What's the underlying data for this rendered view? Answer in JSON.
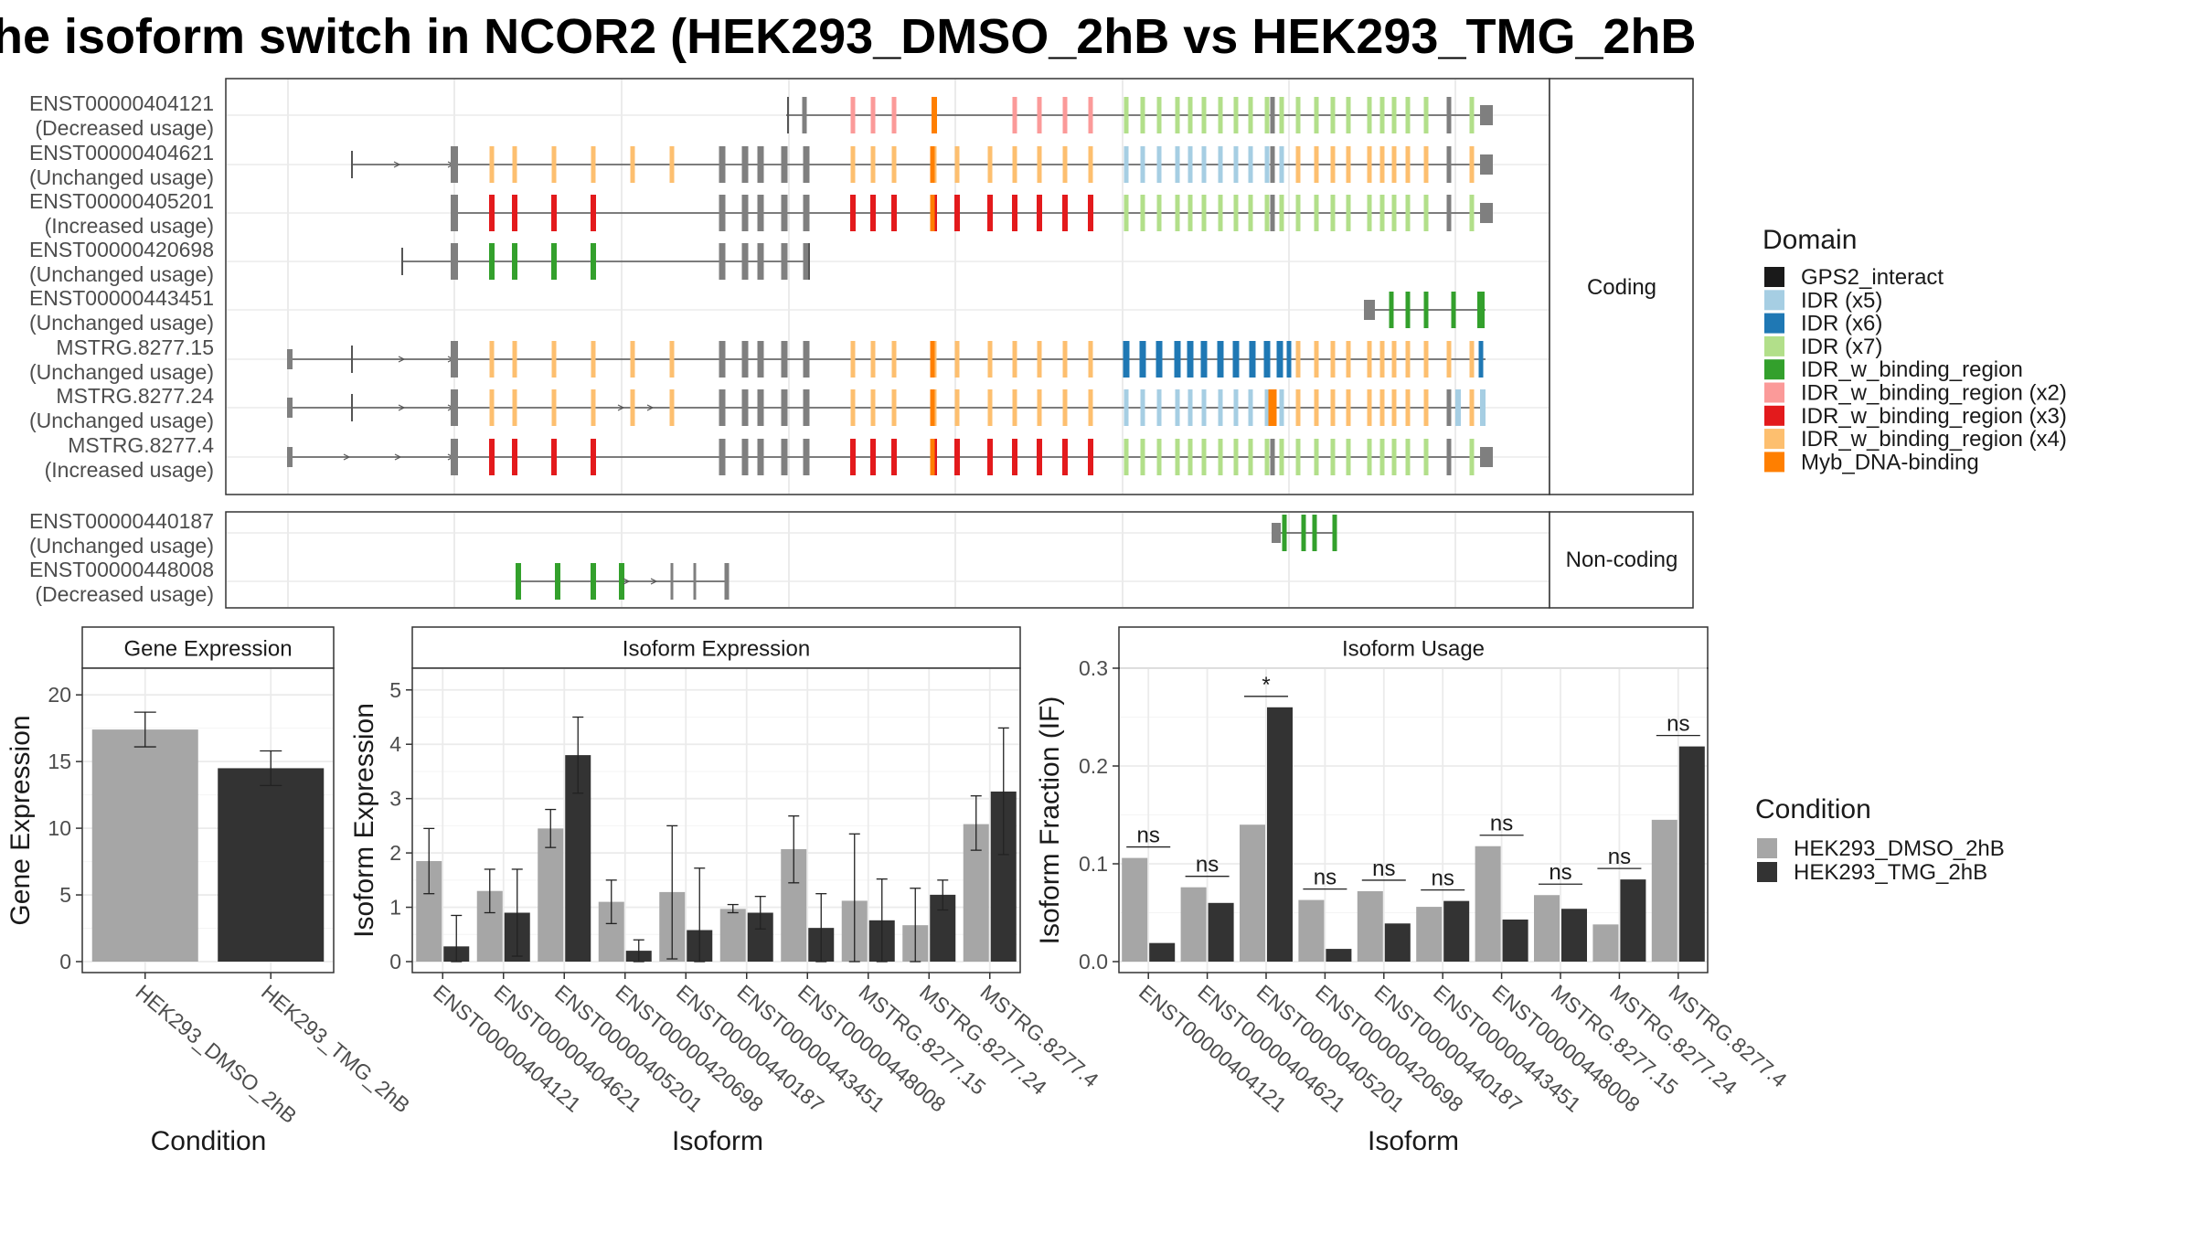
{
  "title": "he isoform switch in NCOR2 (HEK293_DMSO_2hB vs HEK293_TMG_2hB",
  "colors": {
    "dmso": "#a6a6a6",
    "tmg": "#333333",
    "domains": [
      "#1a1a1a",
      "#a6cee3",
      "#1f78b4",
      "#b2df8a",
      "#33a02c",
      "#fb9a99",
      "#e31a1c",
      "#fdbf6f",
      "#ff7f00"
    ],
    "exon_grey": "#7f7f7f",
    "panel_border": "#333333",
    "grid": "#ebebeb",
    "strip_bg": "#ffffff"
  },
  "structure": {
    "facet_coding": "Coding",
    "facet_noncoding": "Non-coding",
    "coding": [
      {
        "id": "ENST00000404121",
        "usage": "(Decreased usage)"
      },
      {
        "id": "ENST00000404621",
        "usage": "(Unchanged usage)"
      },
      {
        "id": "ENST00000405201",
        "usage": "(Increased usage)"
      },
      {
        "id": "ENST00000420698",
        "usage": "(Unchanged usage)"
      },
      {
        "id": "ENST00000443451",
        "usage": "(Unchanged usage)"
      },
      {
        "id": "MSTRG.8277.15",
        "usage": "(Unchanged usage)"
      },
      {
        "id": "MSTRG.8277.24",
        "usage": "(Unchanged usage)"
      },
      {
        "id": "MSTRG.8277.4",
        "usage": "(Increased usage)"
      }
    ],
    "noncoding": [
      {
        "id": "ENST00000440187",
        "usage": "(Unchanged usage)"
      },
      {
        "id": "ENST00000448008",
        "usage": "(Decreased usage)"
      }
    ]
  },
  "domain_legend": {
    "title": "Domain",
    "items": [
      "GPS2_interact",
      "IDR (x5)",
      "IDR (x6)",
      "IDR (x7)",
      "IDR_w_binding_region",
      "IDR_w_binding_region (x2)",
      "IDR_w_binding_region (x3)",
      "IDR_w_binding_region (x4)",
      "Myb_DNA-binding"
    ]
  },
  "condition_legend": {
    "title": "Condition",
    "items": [
      "HEK293_DMSO_2hB",
      "HEK293_TMG_2hB"
    ]
  },
  "chart_data": [
    {
      "type": "bar",
      "title": "Gene Expression",
      "xlabel": "Condition",
      "ylabel": "Gene Expression",
      "categories": [
        "HEK293_DMSO_2hB",
        "HEK293_TMG_2hB"
      ],
      "values": [
        17.4,
        14.5
      ],
      "errors": [
        [
          16.1,
          18.7
        ],
        [
          13.2,
          15.8
        ]
      ],
      "ylim": [
        0,
        22
      ],
      "yticks": [
        "0",
        "5",
        "10",
        "15",
        "20"
      ]
    },
    {
      "type": "bar",
      "title": "Isoform Expression",
      "xlabel": "Isoform",
      "ylabel": "Isoform Expression",
      "categories": [
        "ENST00000404121",
        "ENST00000404621",
        "ENST00000405201",
        "ENST00000420698",
        "ENST00000440187",
        "ENST00000443451",
        "ENST00000448008",
        "MSTRG.8277.15",
        "MSTRG.8277.24",
        "MSTRG.8277.4"
      ],
      "series": [
        {
          "name": "HEK293_DMSO_2hB",
          "values": [
            1.85,
            1.3,
            2.45,
            1.1,
            1.28,
            0.97,
            2.07,
            1.12,
            0.67,
            2.53
          ]
        },
        {
          "name": "HEK293_TMG_2hB",
          "values": [
            0.28,
            0.9,
            3.8,
            0.2,
            0.58,
            0.9,
            0.62,
            0.76,
            1.23,
            3.13
          ]
        }
      ],
      "errors_dmso": [
        [
          1.25,
          2.45
        ],
        [
          0.9,
          1.7
        ],
        [
          2.1,
          2.8
        ],
        [
          0.7,
          1.5
        ],
        [
          0.05,
          2.5
        ],
        [
          0.9,
          1.05
        ],
        [
          1.45,
          2.68
        ],
        [
          0.0,
          2.35
        ],
        [
          0.0,
          1.35
        ],
        [
          2.05,
          3.05
        ]
      ],
      "errors_tmg": [
        [
          0.0,
          0.85
        ],
        [
          0.1,
          1.7
        ],
        [
          3.1,
          4.5
        ],
        [
          0.0,
          0.4
        ],
        [
          0.0,
          1.72
        ],
        [
          0.6,
          1.2
        ],
        [
          0.0,
          1.25
        ],
        [
          0.0,
          1.52
        ],
        [
          0.95,
          1.5
        ],
        [
          1.97,
          4.3
        ]
      ],
      "ylim": [
        0,
        5.4
      ],
      "yticks": [
        "0",
        "1",
        "2",
        "3",
        "4",
        "5"
      ]
    },
    {
      "type": "bar",
      "title": "Isoform Usage",
      "xlabel": "Isoform",
      "ylabel": "Isoform Fraction (IF)",
      "categories": [
        "ENST00000404121",
        "ENST00000404621",
        "ENST00000405201",
        "ENST00000420698",
        "ENST00000440187",
        "ENST00000443451",
        "ENST00000448008",
        "MSTRG.8277.15",
        "MSTRG.8277.24",
        "MSTRG.8277.4"
      ],
      "series": [
        {
          "name": "HEK293_DMSO_2hB",
          "values": [
            0.106,
            0.076,
            0.14,
            0.063,
            0.072,
            0.056,
            0.118,
            0.068,
            0.038,
            0.145
          ]
        },
        {
          "name": "HEK293_TMG_2hB",
          "values": [
            0.019,
            0.06,
            0.26,
            0.013,
            0.039,
            0.062,
            0.043,
            0.054,
            0.084,
            0.22
          ]
        }
      ],
      "significance": [
        "ns",
        "ns",
        "*",
        "ns",
        "ns",
        "ns",
        "ns",
        "ns",
        "ns",
        "ns"
      ],
      "ylim": [
        0,
        0.3
      ],
      "yticks": [
        "0.0",
        "0.1",
        "0.2",
        "0.3"
      ]
    }
  ]
}
